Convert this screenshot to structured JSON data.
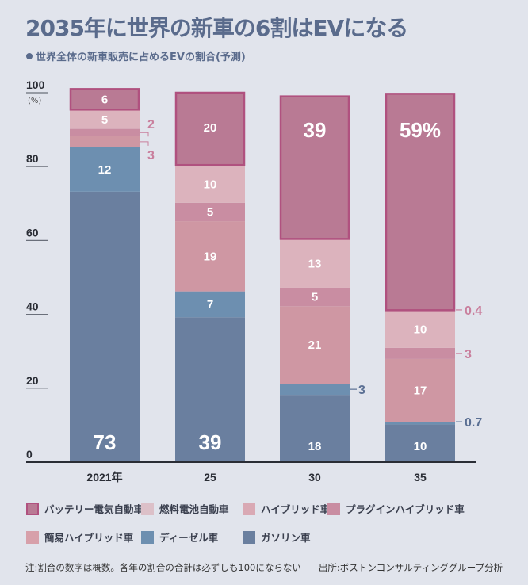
{
  "title": "2035年に世界の新車の6割はEVになる",
  "subtitle": "世界全体の新車販売に占めるEVの割合(予測)",
  "footnote": {
    "note": "注:割合の数字は概数。各年の割合の合計は必ずしも100にならない",
    "source": "出所:ボストンコンサルティンググループ分析"
  },
  "chart_data": {
    "type": "bar",
    "stacked": true,
    "title": "2035年に世界の新車の6割はEVになる",
    "subtitle": "世界全体の新車販売に占めるEVの割合(予測)",
    "xlabel": "",
    "ylabel": "(%)",
    "ylim": [
      0,
      100
    ],
    "yticks": [
      "0",
      "20",
      "40",
      "60",
      "80",
      "100"
    ],
    "categories": [
      "2021年",
      "25",
      "30",
      "35"
    ],
    "series": [
      {
        "name": "ガソリン車",
        "color": "#6a7f9f",
        "values": [
          73,
          39,
          18,
          10
        ],
        "labels": [
          "73",
          "39",
          "18",
          "10"
        ]
      },
      {
        "name": "ディーゼル車",
        "color": "#6d8fb0",
        "values": [
          12,
          7,
          3,
          0.7
        ],
        "labels": [
          "12",
          "7",
          "3",
          "0.7"
        ]
      },
      {
        "name": "簡易ハイブリッド車",
        "color": "#cf97a3",
        "values": [
          3,
          19,
          21,
          17
        ],
        "labels": [
          "3",
          "19",
          "21",
          "17"
        ]
      },
      {
        "name": "プラグインハイブリッド車",
        "color": "#c98da2",
        "values": [
          2,
          5,
          5,
          3
        ],
        "labels": [
          "2",
          "5",
          "5",
          "3"
        ]
      },
      {
        "name": "ハイブリッド車",
        "color": "#d9a9b4",
        "values": [
          0,
          0,
          0,
          0
        ],
        "labels": [
          "",
          "",
          "",
          ""
        ]
      },
      {
        "name": "燃料電池自動車",
        "color": "#dcb3bd",
        "values": [
          5,
          10,
          13,
          10
        ],
        "labels": [
          "5",
          "10",
          "13",
          "10"
        ]
      },
      {
        "name": "バッテリー電気自動車",
        "color": "#b97a94",
        "border": "#b0517f",
        "values": [
          6,
          20,
          39,
          59
        ],
        "labels": [
          "6",
          "20",
          "39",
          "59%"
        ]
      }
    ],
    "outside_labels": [
      {
        "category": "2021年",
        "series": "プラグインハイブリッド車",
        "text": "2"
      },
      {
        "category": "2021年",
        "series": "簡易ハイブリッド車",
        "text": "3"
      },
      {
        "category": "30",
        "series": "ディーゼル車",
        "text": "3"
      },
      {
        "category": "35",
        "series": "バッテリー電気自動車/燃料電池自動車 gap",
        "text": "0.4"
      },
      {
        "category": "35",
        "series": "プラグインハイブリッド車",
        "text": "3"
      },
      {
        "category": "35",
        "series": "ディーゼル車",
        "text": "0.7"
      }
    ],
    "legend": {
      "position": "bottom",
      "items": [
        {
          "name": "バッテリー電気自動車",
          "color": "#b97a94",
          "border": "#b0517f"
        },
        {
          "name": "燃料電池自動車",
          "color": "#dcc0c8"
        },
        {
          "name": "ハイブリッド車",
          "color": "#d9a9b4"
        },
        {
          "name": "プラグインハイブリッド車",
          "color": "#c98da2"
        },
        {
          "name": "簡易ハイブリッド車",
          "color": "#d7a0aa"
        },
        {
          "name": "ディーゼル車",
          "color": "#6d8fb0"
        },
        {
          "name": "ガソリン車",
          "color": "#6a7f9f"
        }
      ]
    },
    "grid": false
  }
}
